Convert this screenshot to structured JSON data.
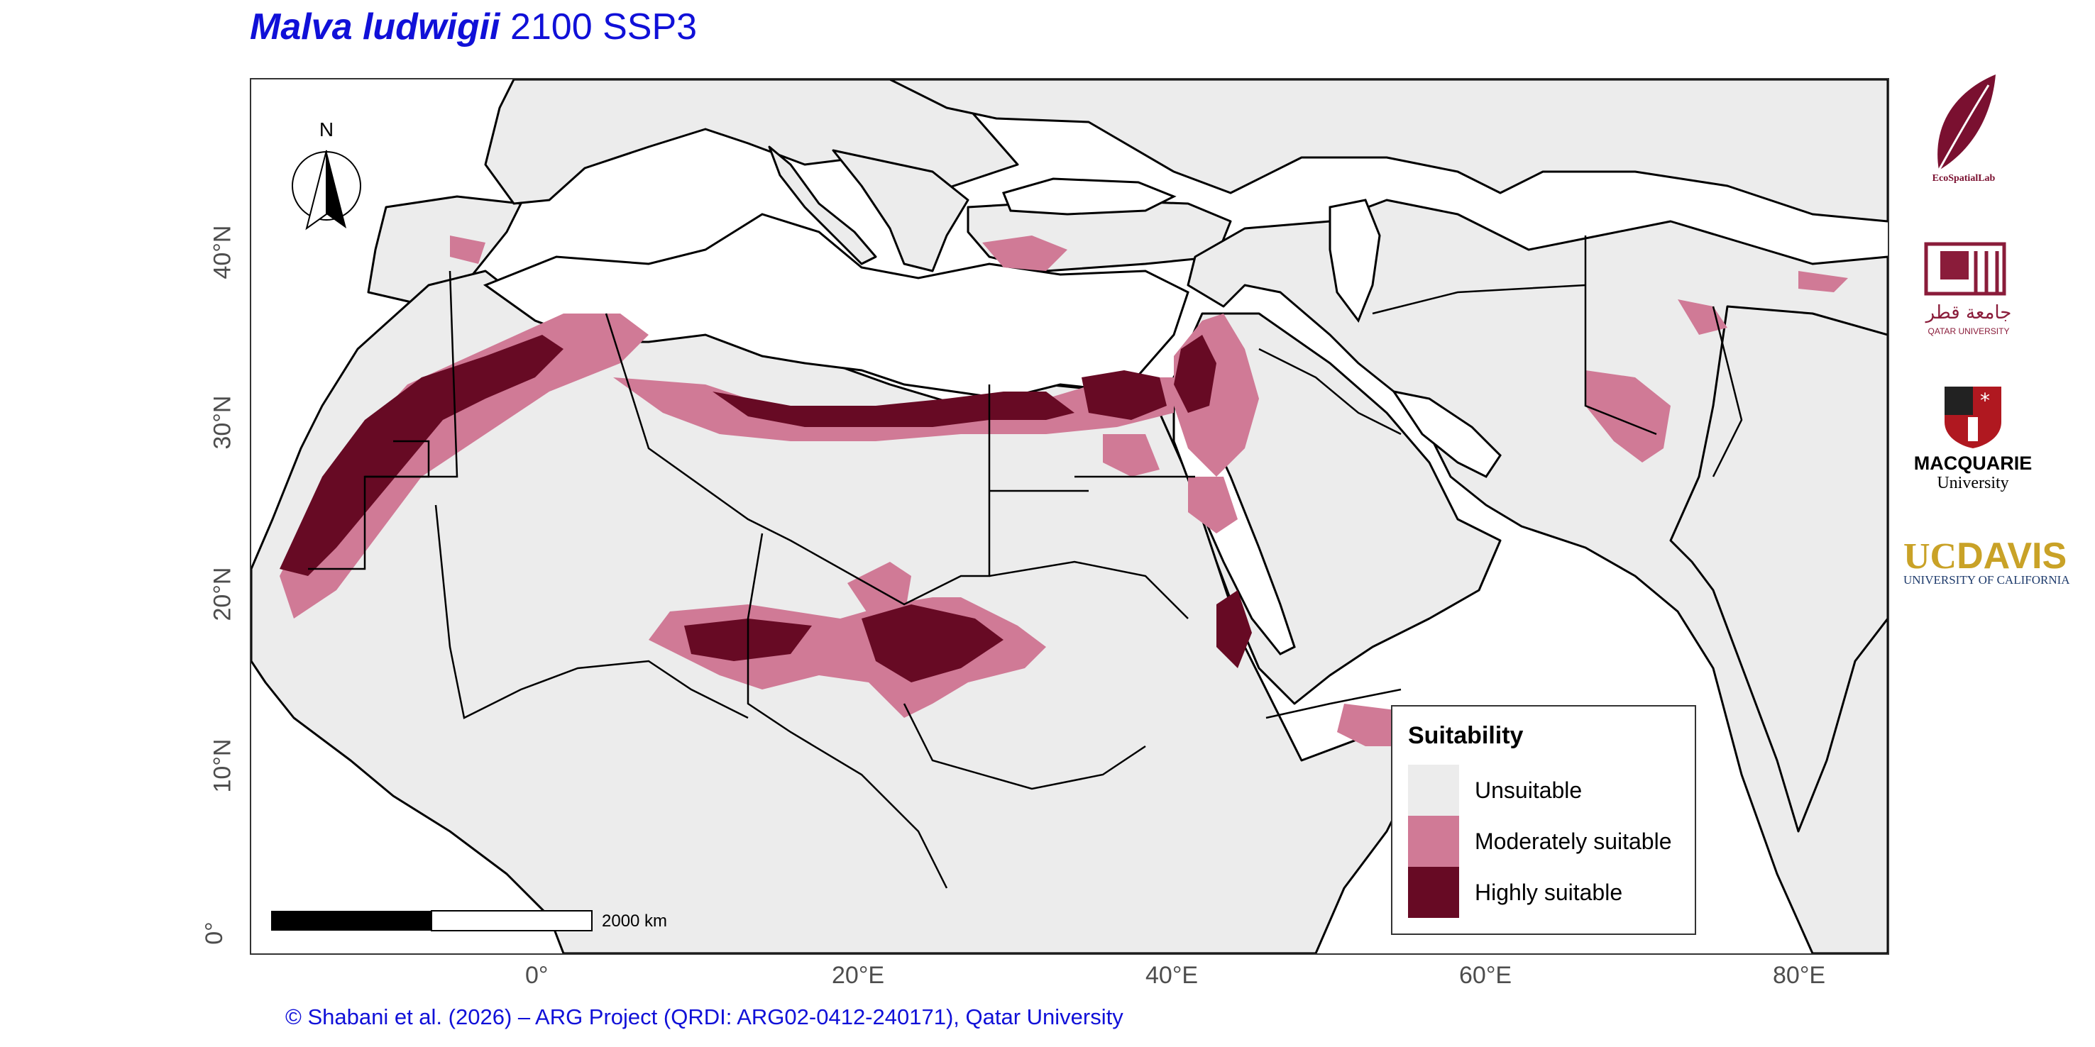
{
  "title": {
    "species": "Malva ludwigii",
    "scenario": "2100 SSP3"
  },
  "map": {
    "x_ticks": [
      "0°",
      "20°E",
      "40°E",
      "60°E",
      "80°E"
    ],
    "y_ticks": [
      "0°",
      "10°N",
      "20°N",
      "30°N",
      "40°N"
    ],
    "north_arrow_label": "N",
    "scale_bar_label": "2000 km"
  },
  "legend": {
    "title": "Suitability",
    "items": [
      {
        "label": "Unsuitable",
        "color": "#ececec"
      },
      {
        "label": "Moderately suitable",
        "color": "#d07a96"
      },
      {
        "label": "Highly suitable",
        "color": "#670a24"
      }
    ]
  },
  "logos": [
    {
      "name": "EcoSpatialLab",
      "text": "EcoSpatialLab",
      "color": "#7a1030"
    },
    {
      "name": "Qatar University",
      "text_arabic": "جامعة قطر",
      "text": "QATAR UNIVERSITY",
      "color": "#8a1c3a"
    },
    {
      "name": "Macquarie University",
      "text": "MACQUARIE",
      "subtext": "University",
      "color": "#b01820"
    },
    {
      "name": "UC Davis",
      "text_uc": "UC",
      "text_davis": "DAVIS",
      "subtext": "UNIVERSITY OF CALIFORNIA",
      "color": "#c9a227",
      "navy": "#1d3a6b"
    }
  ],
  "credit": "© Shabani et al. (2026) – ARG Project (QRDI: ARG02-0412-240171), Qatar University",
  "colors": {
    "land": "#ececec",
    "sea": "#ffffff",
    "border": "#000000",
    "title": "#1010d8"
  }
}
